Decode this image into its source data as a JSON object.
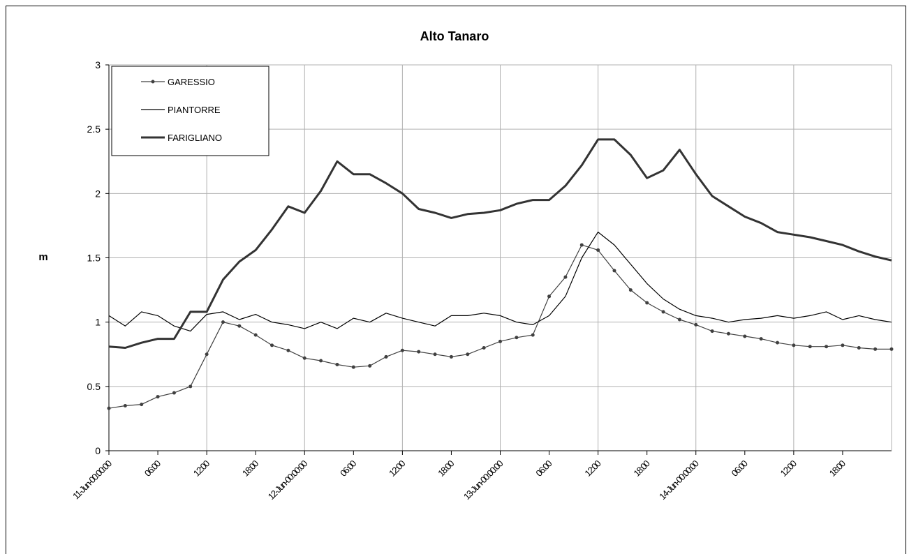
{
  "chart_data": {
    "type": "line",
    "title": "Alto Tanaro",
    "y_label": "m",
    "x": [
      0,
      2,
      4,
      6,
      8,
      10,
      12,
      14,
      16,
      18,
      20,
      22,
      24,
      26,
      28,
      30,
      32,
      34,
      36,
      38,
      40,
      42,
      44,
      46,
      48,
      50,
      52,
      54,
      56,
      58,
      60,
      62,
      64,
      66,
      68,
      70,
      72,
      74,
      76,
      78,
      80,
      82,
      84,
      86,
      88,
      90,
      92,
      94,
      96
    ],
    "series": [
      {
        "name": "GARESSIO",
        "color": "#404040",
        "marker": "circle",
        "values": [
          0.33,
          0.35,
          0.36,
          0.42,
          0.45,
          0.5,
          0.75,
          1.0,
          0.97,
          0.9,
          0.82,
          0.78,
          0.72,
          0.7,
          0.67,
          0.65,
          0.66,
          0.73,
          0.78,
          0.77,
          0.75,
          0.73,
          0.75,
          0.8,
          0.85,
          0.88,
          0.9,
          1.2,
          1.35,
          1.6,
          1.56,
          1.4,
          1.25,
          1.15,
          1.08,
          1.02,
          0.98,
          0.93,
          0.91,
          0.89,
          0.87,
          0.84,
          0.82,
          0.81,
          0.81,
          0.82,
          0.8,
          0.79,
          0.79
        ]
      },
      {
        "name": "PIANTORRE",
        "color": "#000000",
        "marker": "none",
        "values": [
          1.05,
          0.97,
          1.08,
          1.05,
          0.97,
          0.93,
          1.06,
          1.08,
          1.02,
          1.06,
          1.0,
          0.98,
          0.95,
          1.0,
          0.95,
          1.03,
          1.0,
          1.07,
          1.03,
          1.0,
          0.97,
          1.05,
          1.05,
          1.07,
          1.05,
          1.0,
          0.98,
          1.05,
          1.2,
          1.5,
          1.7,
          1.6,
          1.45,
          1.3,
          1.18,
          1.1,
          1.05,
          1.03,
          1.0,
          1.02,
          1.03,
          1.05,
          1.03,
          1.05,
          1.08,
          1.02,
          1.05,
          1.02,
          1.0
        ]
      },
      {
        "name": "FARIGLIANO",
        "color": "#333333",
        "marker": "none",
        "width": 3,
        "values": [
          0.81,
          0.8,
          0.84,
          0.87,
          0.87,
          1.08,
          1.08,
          1.33,
          1.47,
          1.56,
          1.72,
          1.9,
          1.85,
          2.02,
          2.25,
          2.15,
          2.15,
          2.08,
          2.0,
          1.88,
          1.85,
          1.81,
          1.84,
          1.85,
          1.87,
          1.92,
          1.95,
          1.95,
          2.06,
          2.22,
          2.42,
          2.42,
          2.3,
          2.12,
          2.18,
          2.34,
          2.15,
          1.98,
          1.9,
          1.82,
          1.77,
          1.7,
          1.68,
          1.66,
          1.63,
          1.6,
          1.55,
          1.51,
          1.48
        ]
      }
    ],
    "xlim": [
      0,
      96
    ],
    "xticks": [
      {
        "value": 0,
        "label": "11-Jun-00:00:00"
      },
      {
        "value": 6,
        "label": "06:00"
      },
      {
        "value": 12,
        "label": "12:00"
      },
      {
        "value": 18,
        "label": "18:00"
      },
      {
        "value": 24,
        "label": "12-Jun-00:00:00"
      },
      {
        "value": 30,
        "label": "06:00"
      },
      {
        "value": 36,
        "label": "12:00"
      },
      {
        "value": 42,
        "label": "18:00"
      },
      {
        "value": 48,
        "label": "13-Jun-00:00:00"
      },
      {
        "value": 54,
        "label": "06:00"
      },
      {
        "value": 60,
        "label": "12:00"
      },
      {
        "value": 66,
        "label": "18:00"
      },
      {
        "value": 72,
        "label": "14-Jun-00:00:00"
      },
      {
        "value": 78,
        "label": "06:00"
      },
      {
        "value": 84,
        "label": "12:00"
      },
      {
        "value": 90,
        "label": "18:00"
      }
    ],
    "ylim": [
      0,
      3
    ],
    "yticks": [
      0,
      0.5,
      1,
      1.5,
      2,
      2.5,
      3
    ],
    "grid": true,
    "legend": "top-left"
  }
}
